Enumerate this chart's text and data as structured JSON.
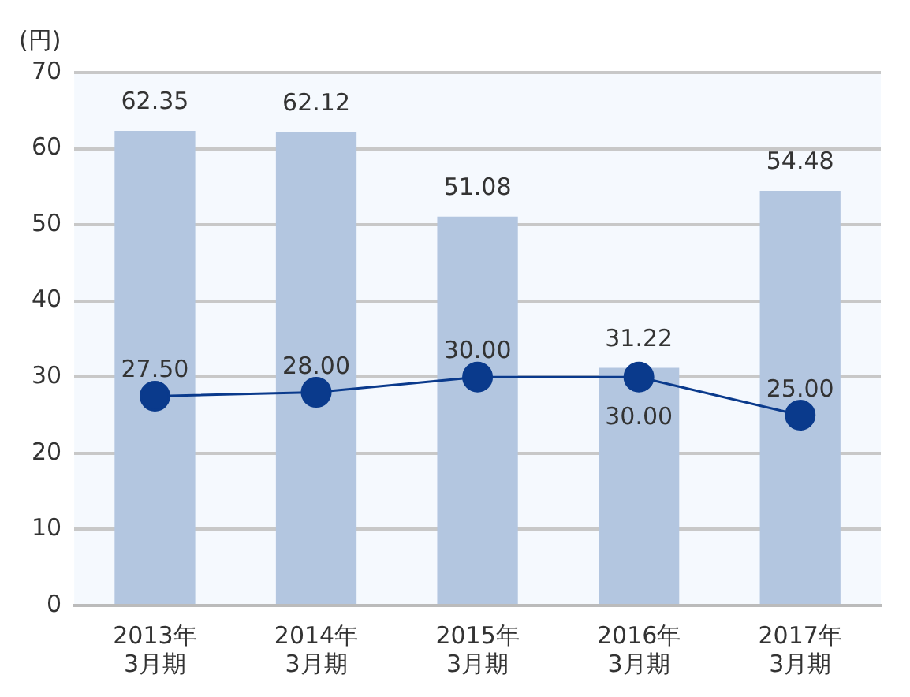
{
  "chart_data": {
    "type": "bar",
    "ylabel": "(円)",
    "categories": [
      "2013年\n3月期",
      "2014年\n3月期",
      "2015年\n3月期",
      "2016年\n3月期",
      "2017年\n3月期"
    ],
    "series": [
      {
        "color": "#b3c6e0",
        "values": [
          62.35,
          62.12,
          51.08,
          31.22,
          54.48
        ],
        "value_labels": [
          "62.35",
          "62.12",
          "51.08",
          "31.22",
          "54.48"
        ]
      },
      {
        "type": "line",
        "color": "#0a3a8c",
        "values": [
          27.5,
          28,
          30,
          30,
          25
        ],
        "value_labels": [
          "27.50",
          "28.00",
          "30.00",
          "30.00",
          "25.00"
        ]
      }
    ],
    "ylim": [
      0,
      70
    ],
    "yticks": [
      0,
      10,
      20,
      30,
      40,
      50,
      60,
      70
    ],
    "grid": "y",
    "legend": false,
    "marker": "circle",
    "line_style": "solid"
  }
}
